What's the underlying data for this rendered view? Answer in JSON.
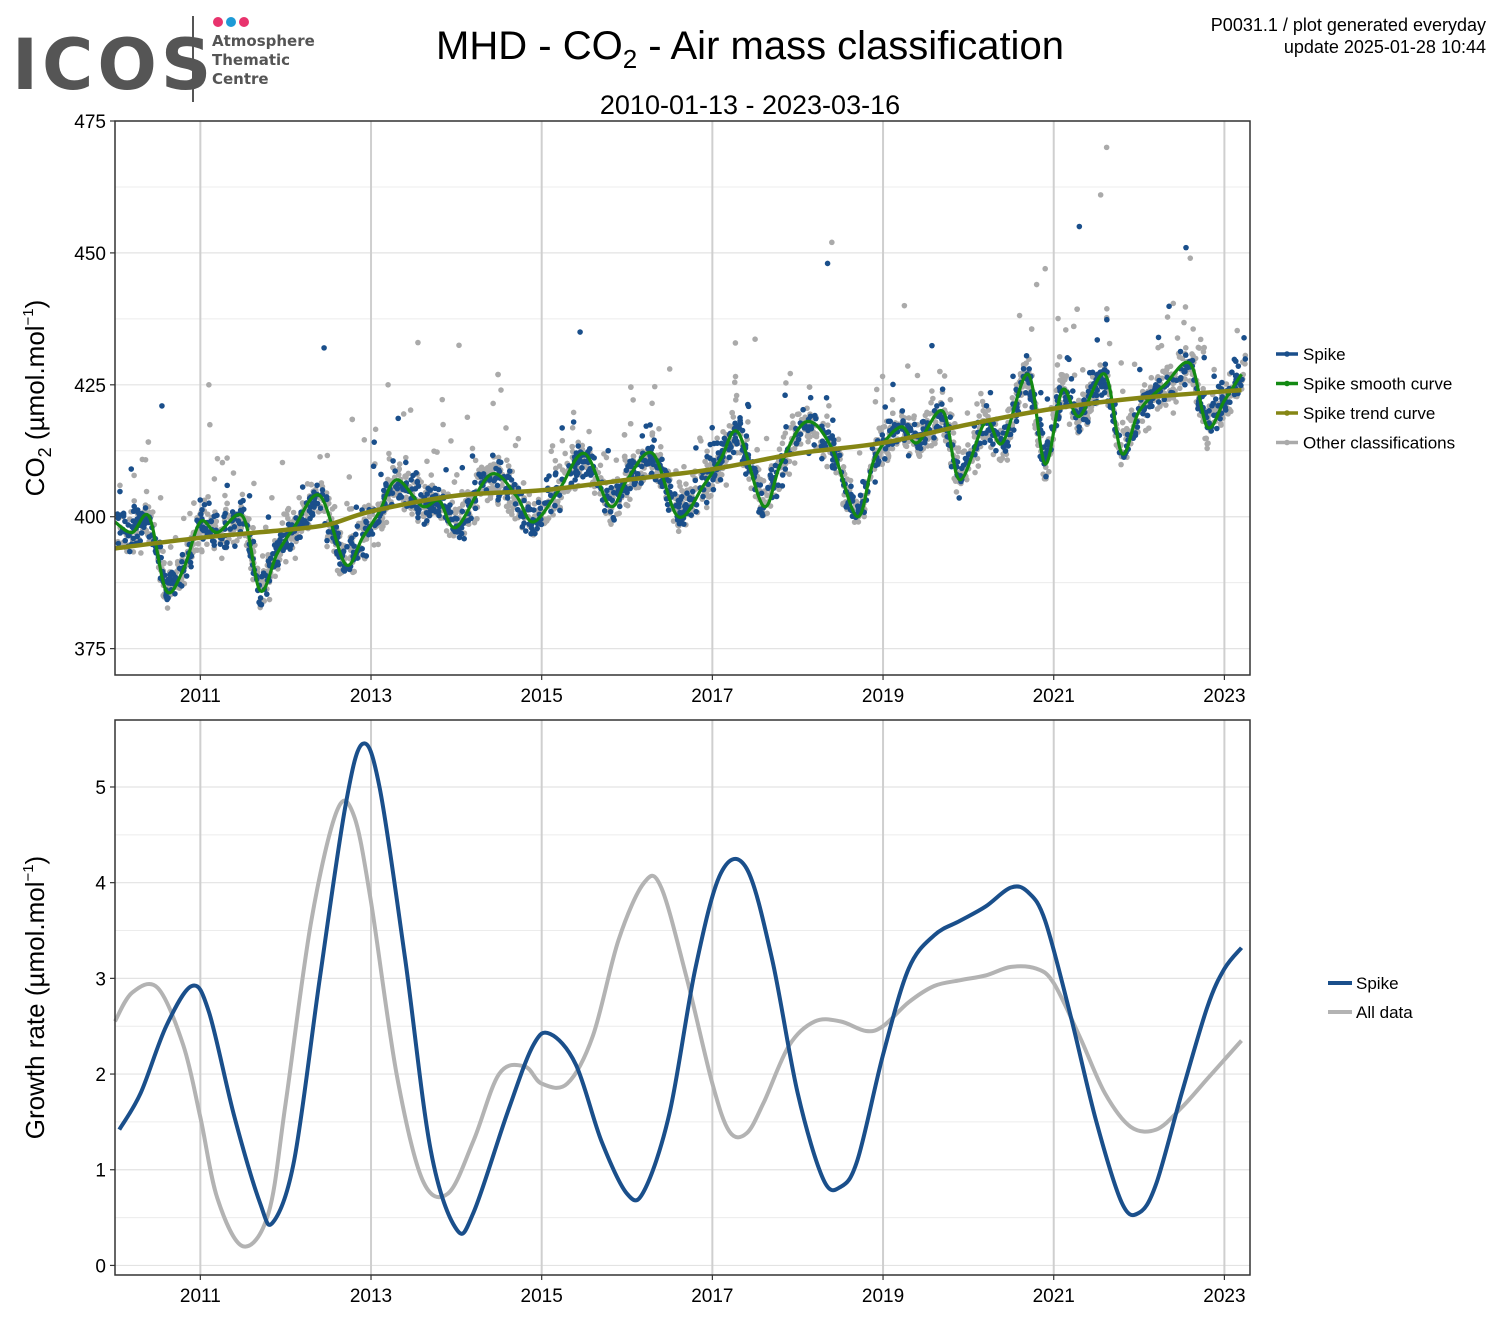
{
  "logo": {
    "name": "ICOS",
    "lines": [
      "Atmosphere",
      "Thematic",
      "Centre"
    ],
    "dot_colors": [
      "#e8336d",
      "#1e9ad6",
      "#e8336d"
    ]
  },
  "header": {
    "title_prefix": "MHD - CO",
    "title_sub": "2",
    "title_suffix": " - Air mass classification",
    "subtitle": "2010-01-13 - 2023-03-16",
    "meta_line1": "P0031.1 / plot generated everyday",
    "meta_line2": "update  2025-01-28 10:44"
  },
  "colors": {
    "spike": "#1a4f8b",
    "smooth": "#138a13",
    "trend": "#858614",
    "other": "#aaaaaa",
    "spike_growth": "#1a4f8b",
    "all_growth": "#b3b3b3"
  },
  "chart_data": [
    {
      "type": "scatter",
      "ylabel_prefix": "CO",
      "ylabel_sub": "2",
      "ylabel_suffix": " (µmol.mol",
      "ylabel_sup": "−1",
      "ylabel_end": ")",
      "xlim": [
        2010.0,
        2023.3
      ],
      "ylim": [
        370,
        475
      ],
      "xticks": [
        2011,
        2013,
        2015,
        2017,
        2019,
        2021,
        2023
      ],
      "xtick_labels": [
        "2011",
        "2013",
        "2015",
        "2017",
        "2019",
        "2021",
        "2023"
      ],
      "yticks": [
        375,
        400,
        425,
        450,
        475
      ],
      "ytick_labels": [
        "375",
        "400",
        "425",
        "450",
        "475"
      ],
      "legend": [
        "Spike",
        "Spike smooth curve",
        "Spike trend curve",
        "Other classifications"
      ],
      "legend_position": "right",
      "series": [
        {
          "name": "Spike trend curve",
          "kind": "line",
          "x": [
            2010.0,
            2011.0,
            2012.0,
            2012.5,
            2013.0,
            2014.0,
            2015.0,
            2016.0,
            2017.0,
            2018.0,
            2019.0,
            2020.0,
            2021.0,
            2022.0,
            2023.2
          ],
          "y": [
            394,
            396,
            397.5,
            398.5,
            401,
            404,
            405,
            407,
            409,
            412,
            414,
            417.5,
            420.5,
            422.5,
            424
          ]
        },
        {
          "name": "Spike smooth curve",
          "kind": "line",
          "x": [
            2010.0,
            2010.2,
            2010.4,
            2010.6,
            2010.8,
            2011.0,
            2011.2,
            2011.5,
            2011.7,
            2011.9,
            2012.1,
            2012.4,
            2012.7,
            2012.9,
            2013.1,
            2013.3,
            2013.6,
            2013.8,
            2014.0,
            2014.4,
            2014.7,
            2014.9,
            2015.2,
            2015.5,
            2015.8,
            2016.0,
            2016.3,
            2016.6,
            2016.9,
            2017.1,
            2017.3,
            2017.6,
            2017.8,
            2018.1,
            2018.4,
            2018.7,
            2018.9,
            2019.2,
            2019.4,
            2019.7,
            2019.9,
            2020.2,
            2020.4,
            2020.7,
            2020.9,
            2021.1,
            2021.3,
            2021.6,
            2021.8,
            2022.0,
            2022.3,
            2022.6,
            2022.8,
            2023.0,
            2023.2
          ],
          "y": [
            399,
            397,
            400,
            386,
            390,
            399,
            397,
            400,
            386,
            393,
            398,
            404,
            391,
            396,
            401,
            407,
            402,
            403,
            398,
            408,
            404,
            399,
            405,
            412,
            402,
            407,
            412,
            400,
            406,
            411,
            416,
            402,
            410,
            418,
            413,
            400,
            411,
            417,
            414,
            420,
            407,
            418,
            414,
            427,
            410,
            424,
            419,
            427,
            412,
            420,
            425,
            429,
            417,
            422,
            427
          ]
        },
        {
          "name": "Spike",
          "kind": "points"
        },
        {
          "name": "Other classifications",
          "kind": "points"
        }
      ]
    },
    {
      "type": "line",
      "ylabel_prefix": "Growth rate (µmol.mol",
      "ylabel_sup": "−1",
      "ylabel_end": ")",
      "xlim": [
        2010.0,
        2023.3
      ],
      "ylim": [
        -0.1,
        5.7
      ],
      "xticks": [
        2011,
        2013,
        2015,
        2017,
        2019,
        2021,
        2023
      ],
      "xtick_labels": [
        "2011",
        "2013",
        "2015",
        "2017",
        "2019",
        "2021",
        "2023"
      ],
      "yticks": [
        0,
        1,
        2,
        3,
        4,
        5
      ],
      "ytick_labels": [
        "0",
        "1",
        "2",
        "3",
        "4",
        "5"
      ],
      "legend": [
        "Spike",
        "All data"
      ],
      "legend_position": "right",
      "series": [
        {
          "name": "Spike",
          "x": [
            2010.05,
            2010.3,
            2010.6,
            2010.9,
            2011.1,
            2011.4,
            2011.7,
            2011.85,
            2012.1,
            2012.4,
            2012.7,
            2012.9,
            2013.1,
            2013.4,
            2013.7,
            2014.0,
            2014.2,
            2014.6,
            2014.9,
            2015.1,
            2015.4,
            2015.7,
            2016.0,
            2016.2,
            2016.5,
            2016.8,
            2017.1,
            2017.4,
            2017.7,
            2018.0,
            2018.3,
            2018.5,
            2018.7,
            2019.0,
            2019.3,
            2019.6,
            2019.9,
            2020.2,
            2020.5,
            2020.7,
            2020.9,
            2021.2,
            2021.5,
            2021.8,
            2022.0,
            2022.2,
            2022.5,
            2022.8,
            2023.0,
            2023.2
          ],
          "y": [
            1.42,
            1.8,
            2.5,
            2.92,
            2.65,
            1.55,
            0.65,
            0.45,
            1.1,
            3.0,
            4.8,
            5.45,
            5.0,
            3.2,
            1.2,
            0.38,
            0.55,
            1.6,
            2.3,
            2.42,
            2.1,
            1.3,
            0.75,
            0.78,
            1.6,
            3.1,
            4.1,
            4.15,
            3.2,
            1.8,
            0.9,
            0.82,
            1.1,
            2.2,
            3.1,
            3.45,
            3.6,
            3.75,
            3.95,
            3.9,
            3.6,
            2.6,
            1.5,
            0.65,
            0.55,
            0.85,
            1.8,
            2.7,
            3.1,
            3.32
          ]
        },
        {
          "name": "All data",
          "x": [
            2010.0,
            2010.2,
            2010.5,
            2010.8,
            2011.0,
            2011.2,
            2011.5,
            2011.8,
            2012.0,
            2012.3,
            2012.6,
            2012.8,
            2013.0,
            2013.3,
            2013.6,
            2013.9,
            2014.2,
            2014.5,
            2014.8,
            2015.0,
            2015.3,
            2015.6,
            2015.9,
            2016.2,
            2016.4,
            2016.7,
            2017.0,
            2017.2,
            2017.4,
            2017.6,
            2017.9,
            2018.2,
            2018.5,
            2018.8,
            2019.0,
            2019.3,
            2019.6,
            2019.9,
            2020.2,
            2020.5,
            2020.8,
            2021.0,
            2021.3,
            2021.6,
            2021.9,
            2022.2,
            2022.5,
            2022.8,
            2023.0,
            2023.2
          ],
          "y": [
            2.55,
            2.85,
            2.9,
            2.3,
            1.55,
            0.7,
            0.2,
            0.55,
            1.7,
            3.6,
            4.75,
            4.7,
            3.8,
            2.0,
            0.9,
            0.75,
            1.3,
            2.0,
            2.08,
            1.9,
            1.9,
            2.4,
            3.4,
            4.0,
            3.95,
            3.0,
            1.9,
            1.4,
            1.38,
            1.7,
            2.3,
            2.55,
            2.55,
            2.45,
            2.5,
            2.75,
            2.92,
            2.98,
            3.03,
            3.12,
            3.1,
            2.95,
            2.4,
            1.8,
            1.45,
            1.42,
            1.65,
            1.95,
            2.15,
            2.35
          ]
        }
      ]
    }
  ]
}
